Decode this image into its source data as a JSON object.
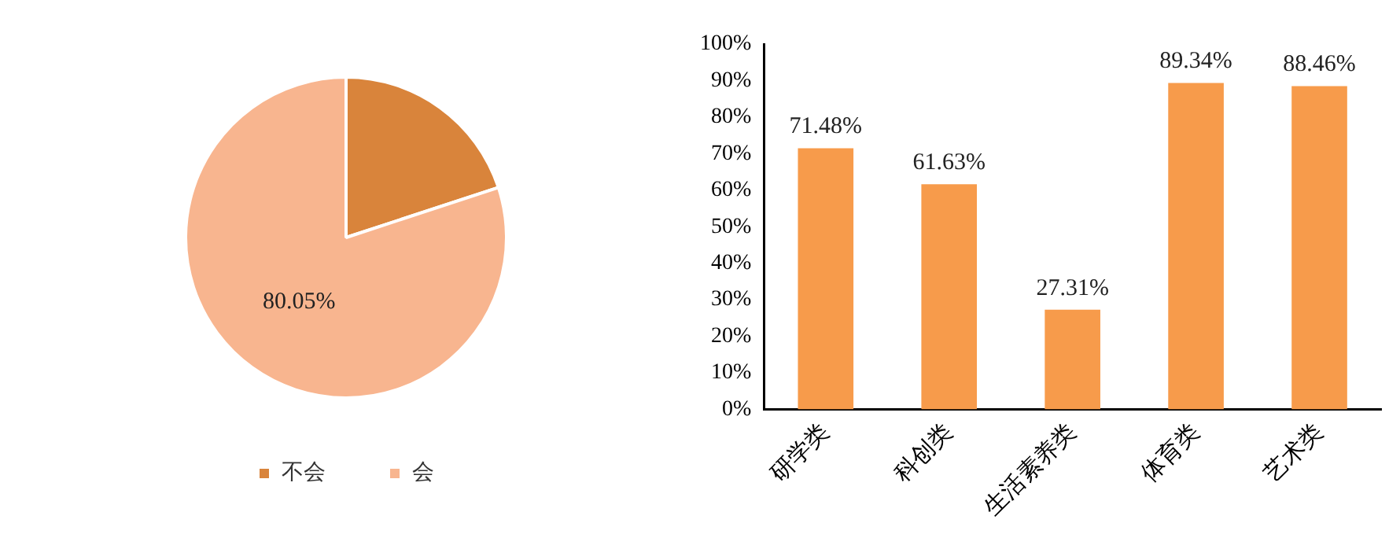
{
  "chart_data": [
    {
      "type": "pie",
      "categories": [
        "不会",
        "会"
      ],
      "values": [
        19.95,
        80.05
      ],
      "colors": [
        "#d9843b",
        "#f8b58f"
      ],
      "value_labels": [
        null,
        "80.05%"
      ],
      "legend": "bottom"
    },
    {
      "type": "bar",
      "categories": [
        "研学类",
        "科创类",
        "生活素养类",
        "体育类",
        "艺术类"
      ],
      "values": [
        71.48,
        61.63,
        27.31,
        89.34,
        88.46
      ],
      "color": "#f79b4b",
      "value_labels": [
        "71.48%",
        "61.63%",
        "27.31%",
        "89.34%",
        "88.46%"
      ],
      "ylim": [
        0,
        100
      ],
      "yticks": [
        {
          "value": 0,
          "label": "0%"
        },
        {
          "value": 10,
          "label": "10%"
        },
        {
          "value": 20,
          "label": "20%"
        },
        {
          "value": 30,
          "label": "30%"
        },
        {
          "value": 40,
          "label": "40%"
        },
        {
          "value": 50,
          "label": "50%"
        },
        {
          "value": 60,
          "label": "60%"
        },
        {
          "value": 70,
          "label": "70%"
        },
        {
          "value": 80,
          "label": "80%"
        },
        {
          "value": 90,
          "label": "90%"
        },
        {
          "value": 100,
          "label": "100%"
        }
      ],
      "grid": false,
      "legend": false
    }
  ]
}
